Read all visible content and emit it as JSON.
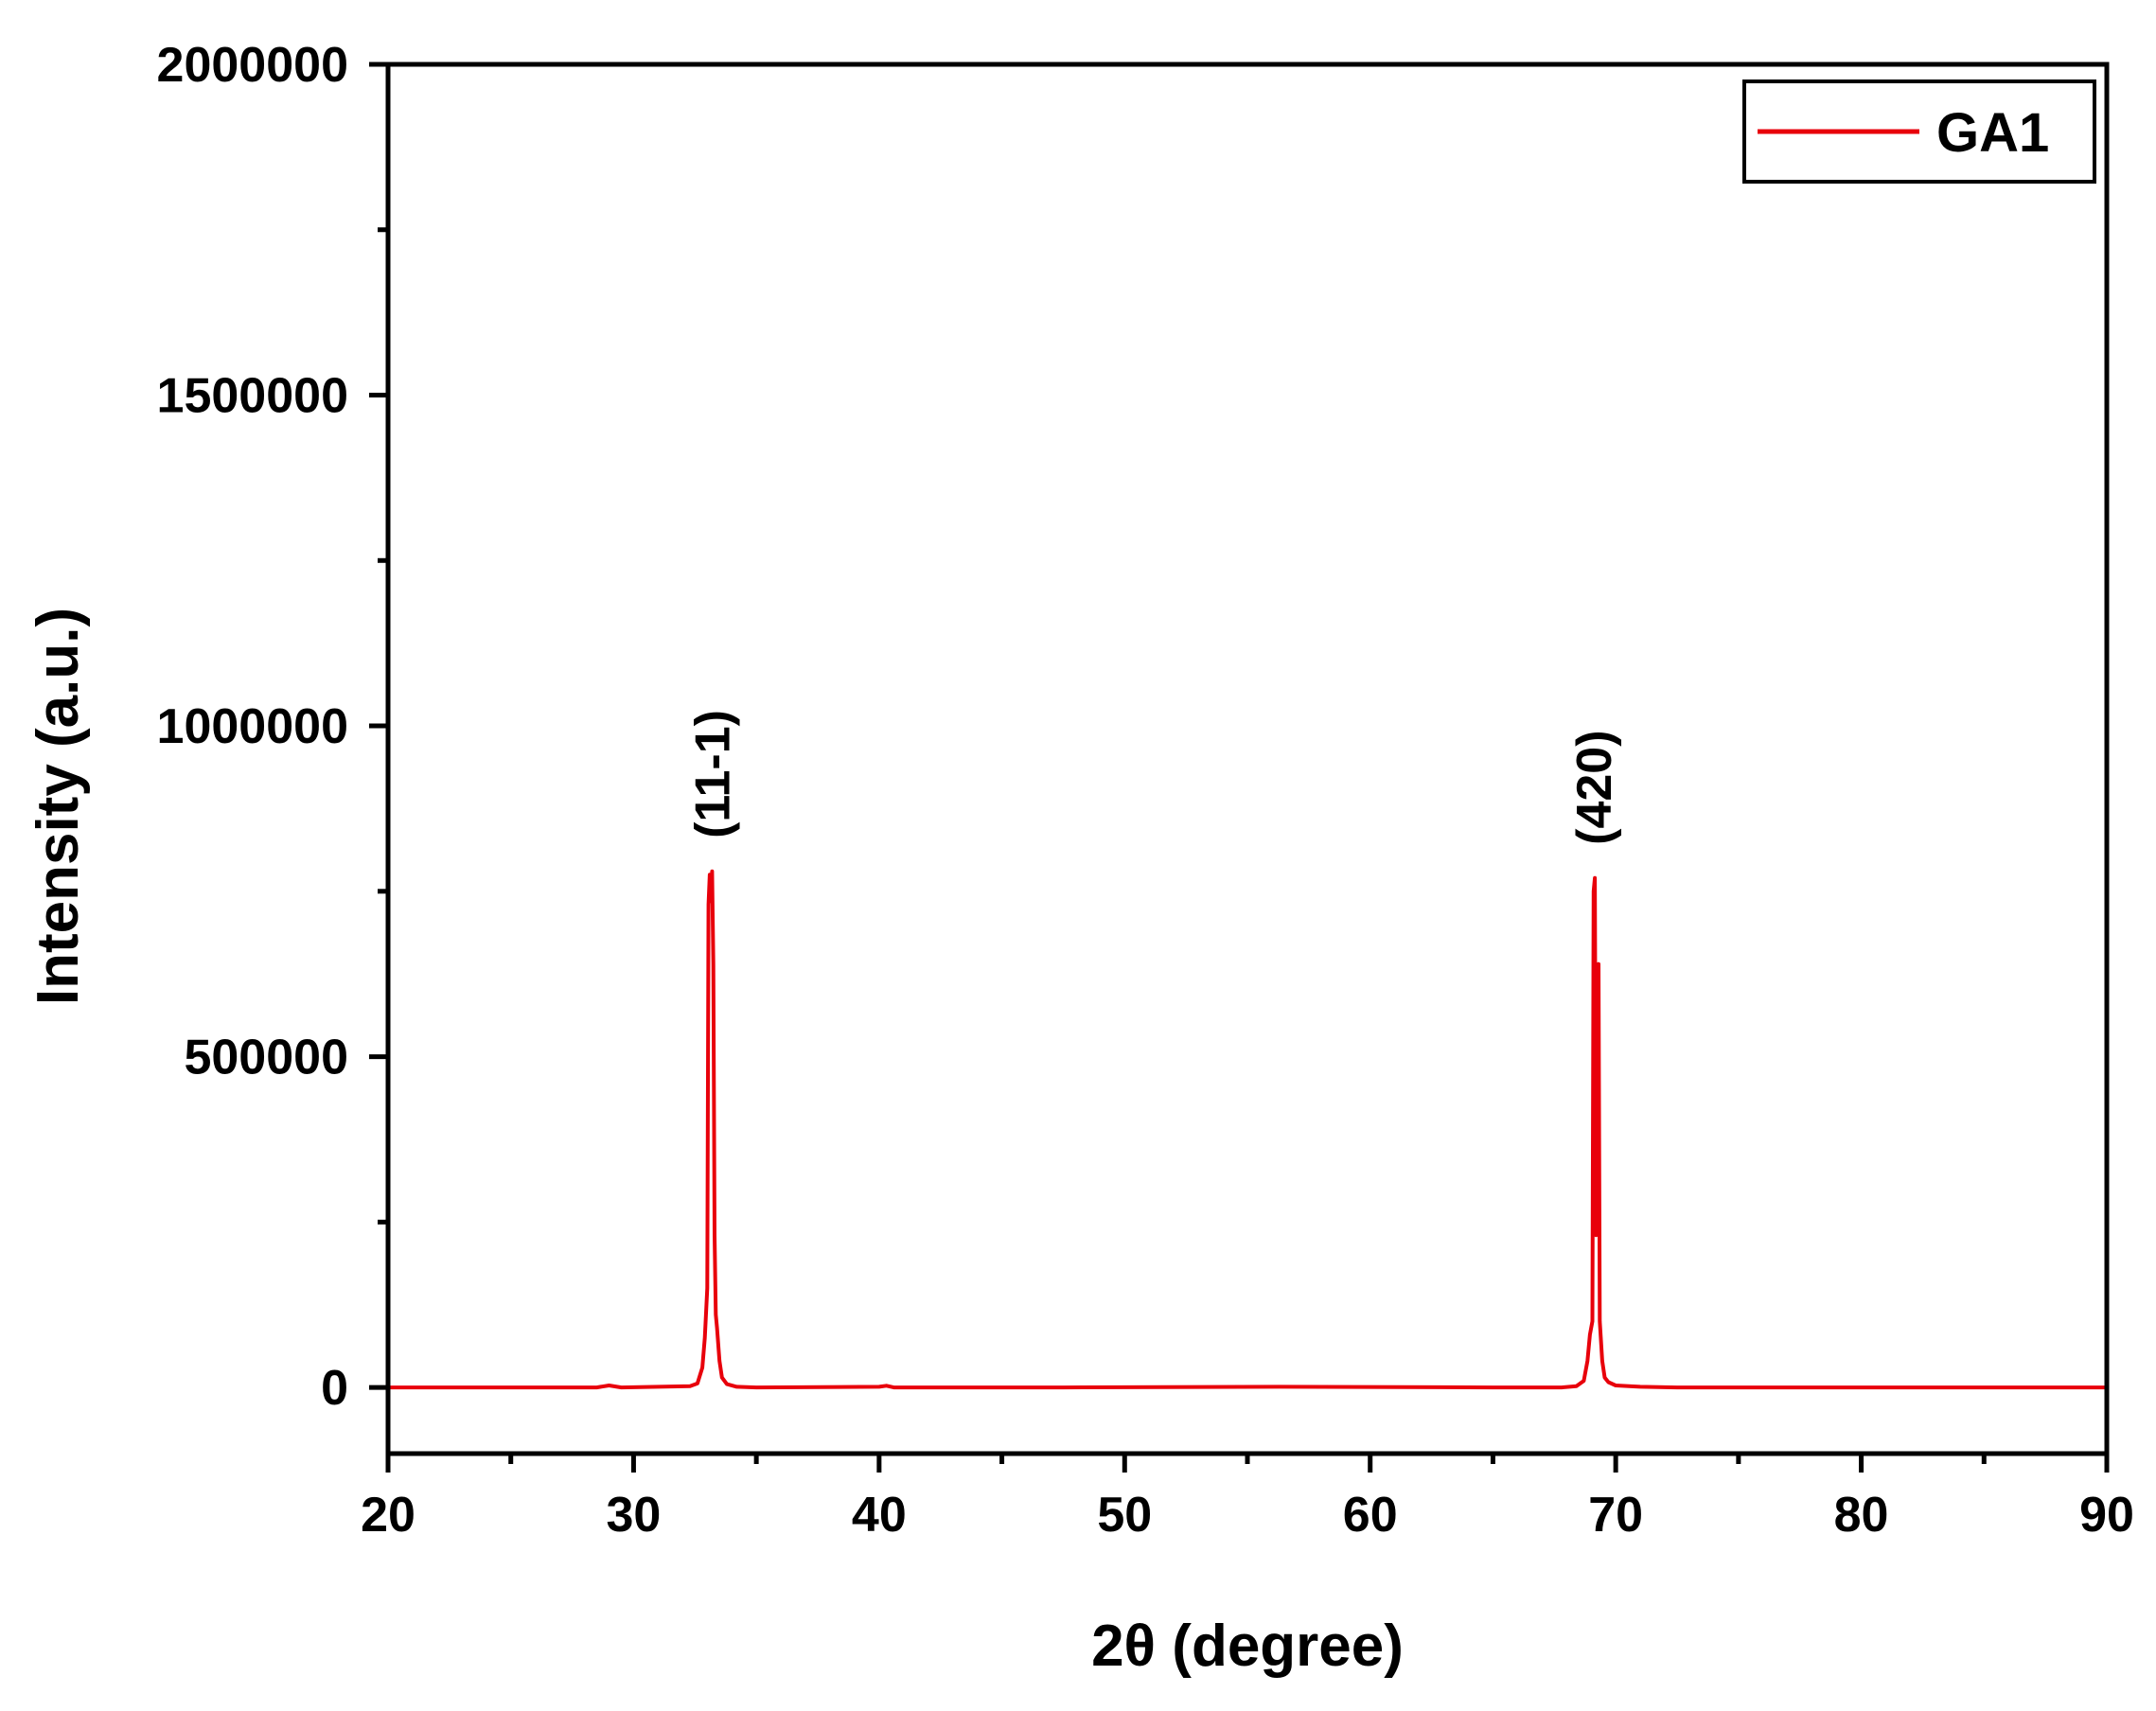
{
  "chart_data": {
    "type": "line",
    "xlabel": "2θ (degree)",
    "ylabel": "Intensity (a.u.)",
    "xlim": [
      20,
      90
    ],
    "ylim": [
      -100000,
      2000000
    ],
    "x_ticks": [
      20,
      30,
      40,
      50,
      60,
      70,
      80,
      90
    ],
    "x_tick_labels": [
      "20",
      "30",
      "40",
      "50",
      "60",
      "70",
      "80",
      "90"
    ],
    "y_ticks": [
      0,
      500000,
      1000000,
      1500000,
      2000000
    ],
    "y_tick_labels": [
      "0",
      "500000",
      "1000000",
      "1500000",
      "2000000"
    ],
    "grid": false,
    "legend": {
      "position": "top-right",
      "entries": [
        "GA1"
      ]
    },
    "series": [
      {
        "name": "GA1",
        "color": "#e8000b",
        "x": [
          20.0,
          28.5,
          29.0,
          29.5,
          32.3,
          32.6,
          32.8,
          32.9,
          33.0,
          33.05,
          33.1,
          33.15,
          33.2,
          33.25,
          33.3,
          33.35,
          33.4,
          33.5,
          33.6,
          33.8,
          34.2,
          35.0,
          40.0,
          40.3,
          40.6,
          47.5,
          56.3,
          65.0,
          67.8,
          68.4,
          68.7,
          68.85,
          68.95,
          69.05,
          69.1,
          69.15,
          69.2,
          69.25,
          69.3,
          69.35,
          69.45,
          69.55,
          69.7,
          70.0,
          71.0,
          72.5,
          90.0
        ],
        "y": [
          0,
          0,
          3000,
          0,
          2000,
          6000,
          30000,
          75000,
          150000,
          730000,
          775000,
          735000,
          780000,
          640000,
          230000,
          110000,
          90000,
          40000,
          15000,
          5000,
          1000,
          0,
          1000,
          2500,
          0,
          0,
          1000,
          0,
          0,
          2000,
          10000,
          40000,
          80000,
          100000,
          750000,
          770000,
          230000,
          630000,
          640000,
          100000,
          40000,
          15000,
          8000,
          3000,
          1000,
          0,
          0
        ]
      }
    ],
    "annotations": [
      {
        "text": "(11-1)",
        "x": 33.2,
        "y": 830000
      },
      {
        "text": "(420)",
        "x": 69.1,
        "y": 820000
      }
    ]
  }
}
